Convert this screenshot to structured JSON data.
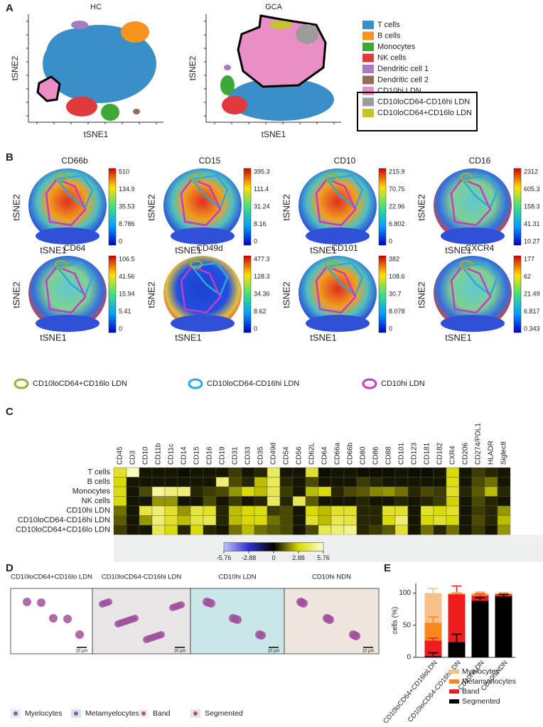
{
  "panel_labels": [
    "A",
    "B",
    "C",
    "D",
    "E"
  ],
  "panel_a": {
    "plots": [
      {
        "title": "HC"
      },
      {
        "title": "GCA"
      }
    ],
    "xlabel": "tSNE1",
    "ylabel": "tSNE2",
    "legend": [
      {
        "name": "T cells",
        "color": "#3a8fc9"
      },
      {
        "name": "B cells",
        "color": "#f7941d"
      },
      {
        "name": "Monocytes",
        "color": "#3aaa35"
      },
      {
        "name": "NK cells",
        "color": "#e03a3e"
      },
      {
        "name": "Dendritic cell 1",
        "color": "#a67cc4"
      },
      {
        "name": "Dendritic cell 2",
        "color": "#9b6b5a"
      },
      {
        "name": "CD10hi LDN",
        "color": "#e98ec6"
      },
      {
        "name": "CD10loCD64-CD16hi LDN",
        "color": "#9c9c9c"
      },
      {
        "name": "CD10loCD64+CD16lo LDN",
        "color": "#c7c32e"
      }
    ]
  },
  "panel_b": {
    "xlabel": "tSNE1",
    "ylabel": "tSNE2",
    "plots": [
      {
        "title": "CD66b",
        "ticks": [
          510,
          134.9,
          35.53,
          8.786,
          0
        ]
      },
      {
        "title": "CD15",
        "ticks": [
          395.3,
          111.4,
          31.24,
          8.16,
          0
        ]
      },
      {
        "title": "CD10",
        "ticks": [
          215.9,
          70.75,
          22.96,
          6.802,
          0
        ]
      },
      {
        "title": "CD16",
        "ticks": [
          2312,
          605.3,
          158.3,
          41.31,
          10.27
        ]
      },
      {
        "title": "CD64",
        "ticks": [
          106.5,
          41.56,
          15.94,
          5.41,
          0
        ]
      },
      {
        "title": "CD49d",
        "ticks": [
          477.3,
          128.3,
          34.36,
          8.62,
          0
        ]
      },
      {
        "title": "CD101",
        "ticks": [
          382,
          108.6,
          30.7,
          8.078,
          0
        ]
      },
      {
        "title": "CXCR4",
        "ticks": [
          177,
          62,
          21.49,
          6.817,
          0.343
        ]
      }
    ],
    "legend": [
      {
        "name": "CD10loCD64+CD16lo LDN",
        "color": "#8db33a"
      },
      {
        "name": "CD10loCD64-CD16hi LDN",
        "color": "#29a9e1"
      },
      {
        "name": "CD10hi LDN",
        "color": "#c53bc4"
      }
    ]
  },
  "panel_d": {
    "images": [
      {
        "title": "CD10loCD64+CD16lo LDN",
        "scale": "10 µm"
      },
      {
        "title": "CD10loCD64-CD16hi LDN",
        "scale": "10 µm"
      },
      {
        "title": "CD10hi LDN",
        "scale": "10 µm"
      },
      {
        "title": "CD10hi NDN",
        "scale": "10 µm"
      }
    ],
    "legend": [
      "Myelocytes",
      "Metamyelocytes",
      "Band",
      "Segmented"
    ]
  },
  "chart_data": [
    {
      "type": "heatmap",
      "x": [
        "CD45",
        "CD3",
        "CD10",
        "CD11b",
        "CD11c",
        "CD14",
        "CD15",
        "CD16",
        "CD19",
        "CD31",
        "CD33",
        "CD35",
        "CD49d",
        "CD54",
        "CD56",
        "CD62L",
        "CD64",
        "CD66a",
        "CD66b",
        "CD80",
        "CD86",
        "CD88",
        "CD101",
        "CD123",
        "CD181",
        "CD182",
        "CXR4",
        "CD206",
        "CD274/PDL1",
        "HLADR",
        "Siglec8"
      ],
      "y": [
        "T cells",
        "B cells",
        "Monocytes",
        "NK cells",
        "CD10hi LDN",
        "CD10loCD64-CD16hi LDN",
        "CD10loCD64+CD16lo LDN"
      ],
      "values": [
        [
          3.5,
          5.5,
          0.3,
          0.3,
          0.3,
          0.2,
          0.3,
          0.3,
          0.3,
          0.8,
          0.3,
          0.5,
          4.2,
          0.3,
          0.3,
          3.5,
          0.2,
          0.3,
          0.3,
          0.2,
          0.2,
          0.2,
          0.3,
          0.2,
          0.2,
          0.3,
          3.0,
          0.3,
          0.8,
          0.5,
          0.3
        ],
        [
          3.0,
          0.3,
          0.3,
          0.3,
          0.3,
          0.3,
          0.3,
          0.3,
          4.5,
          1.0,
          0.5,
          2.5,
          4.2,
          0.5,
          0.3,
          1.0,
          0.3,
          0.3,
          0.3,
          0.8,
          0.5,
          0.3,
          0.3,
          0.3,
          0.3,
          0.3,
          3.2,
          0.3,
          1.0,
          1.5,
          0.3
        ],
        [
          3.2,
          0.3,
          1.0,
          5.0,
          4.5,
          4.5,
          0.5,
          0.8,
          1.0,
          2.0,
          3.0,
          2.5,
          4.0,
          0.8,
          0.3,
          2.5,
          3.0,
          0.5,
          1.0,
          1.2,
          1.8,
          2.0,
          1.5,
          0.5,
          1.0,
          0.8,
          3.5,
          0.5,
          1.2,
          2.5,
          0.5
        ],
        [
          3.0,
          0.3,
          0.3,
          2.0,
          2.0,
          0.3,
          0.3,
          1.0,
          0.3,
          0.8,
          0.3,
          0.5,
          4.2,
          0.5,
          4.0,
          1.2,
          0.3,
          0.3,
          0.3,
          0.5,
          0.3,
          0.3,
          0.5,
          0.3,
          0.5,
          0.8,
          2.8,
          0.3,
          1.0,
          0.5,
          0.3
        ],
        [
          1.5,
          0.3,
          3.8,
          4.5,
          3.5,
          2.0,
          3.8,
          3.5,
          0.5,
          2.5,
          3.0,
          3.2,
          0.8,
          1.0,
          0.3,
          3.0,
          2.5,
          3.5,
          3.5,
          0.5,
          0.5,
          3.5,
          3.5,
          0.3,
          3.5,
          3.0,
          3.5,
          0.3,
          0.8,
          0.5,
          2.0
        ],
        [
          1.2,
          0.3,
          2.0,
          4.5,
          3.5,
          2.5,
          3.8,
          4.0,
          0.5,
          2.5,
          3.0,
          3.0,
          1.5,
          1.0,
          0.3,
          3.5,
          2.5,
          4.0,
          3.8,
          0.5,
          0.5,
          3.0,
          4.5,
          0.3,
          3.0,
          3.5,
          3.0,
          0.3,
          1.0,
          0.5,
          2.5
        ],
        [
          0.8,
          0.3,
          0.3,
          4.0,
          3.0,
          0.5,
          3.0,
          0.5,
          0.3,
          1.5,
          2.5,
          1.5,
          1.2,
          1.0,
          0.3,
          1.0,
          4.0,
          4.5,
          4.8,
          0.5,
          0.8,
          1.2,
          3.5,
          0.3,
          1.5,
          0.5,
          1.5,
          0.3,
          0.8,
          0.3,
          2.0
        ]
      ],
      "colorbar_lim": [
        -5.76,
        5.76
      ],
      "colorbar_ticks": [
        -5.76,
        -2.88,
        0,
        2.88,
        5.76
      ]
    },
    {
      "type": "stacked_bar",
      "ylabel": "cells (%)",
      "categories": [
        "CD10loCD64+CD16loLDN",
        "CD10loCD64-CD16hiLDN",
        "CD10hiLDN",
        "CD10hiNDN"
      ],
      "ylim": [
        0,
        115
      ],
      "yticks": [
        0,
        50,
        100
      ],
      "series": [
        {
          "name": "Myelocytes",
          "color": "#f9c08a",
          "values": [
            46,
            1,
            2,
            1
          ],
          "errors": [
            7,
            1,
            2,
            1
          ]
        },
        {
          "name": "Metamyelocytes",
          "color": "#f7871e",
          "values": [
            28,
            1,
            2,
            1
          ],
          "errors": [
            9,
            1,
            2,
            1
          ]
        },
        {
          "name": "Band",
          "color": "#ee1c1c",
          "values": [
            24,
            74,
            8,
            3
          ],
          "errors": [
            4,
            13,
            3,
            2
          ]
        },
        {
          "name": "Segmented",
          "color": "#000000",
          "values": [
            2,
            24,
            88,
            95
          ],
          "errors": [
            5,
            12,
            5,
            3
          ]
        }
      ]
    }
  ]
}
